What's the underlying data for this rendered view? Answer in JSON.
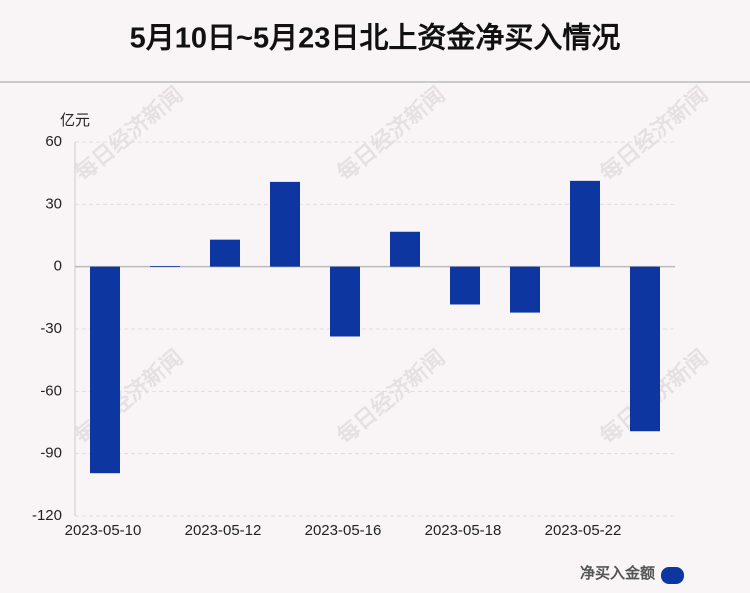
{
  "chart_data": {
    "type": "bar",
    "title": "5月10日~5月23日北上资金净买入情况",
    "y_unit": "亿元",
    "categories": [
      "2023-05-10",
      null,
      "2023-05-12",
      null,
      "2023-05-16",
      null,
      "2023-05-18",
      null,
      "2023-05-22",
      null
    ],
    "series": [
      {
        "name": "净买入金额",
        "color": "#0d36a0",
        "values": [
          -99.4,
          0.3,
          13,
          40.8,
          -33.6,
          16.8,
          -18.2,
          -22.1,
          41.3,
          -79.2
        ]
      }
    ],
    "ylim": [
      -120,
      60
    ],
    "yticks": [
      -120,
      -90,
      -60,
      -30,
      0,
      30,
      60
    ],
    "grid": true,
    "watermark": "每日经济新闻"
  }
}
